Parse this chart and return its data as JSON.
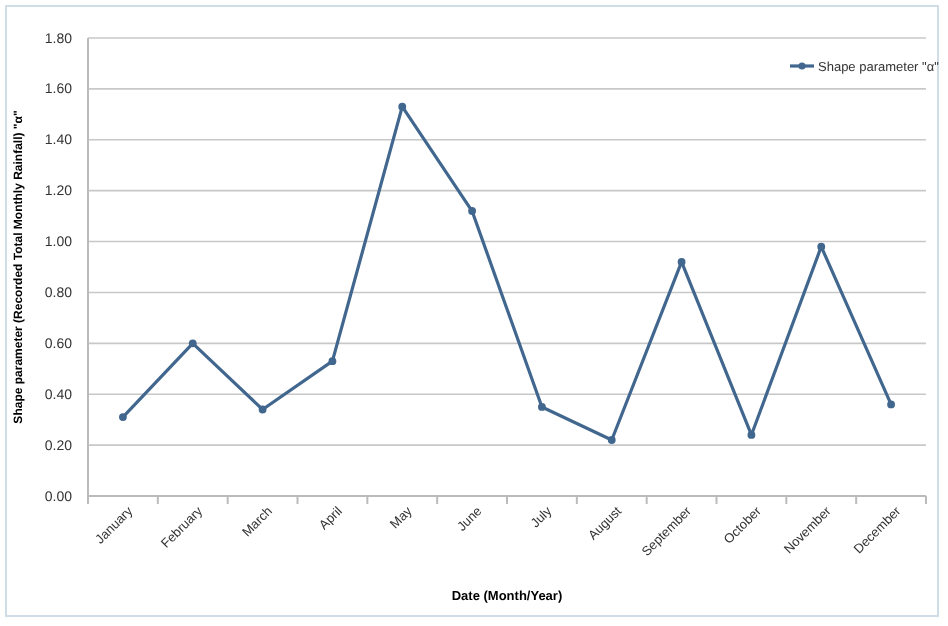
{
  "chart_data": {
    "type": "line",
    "xlabel": "Date (Month/Year)",
    "ylabel": "Shape parameter (Recorded Total Monthly Rainfall) \"α\"",
    "categories": [
      "January",
      "February",
      "March",
      "April",
      "May",
      "June",
      "July",
      "August",
      "September",
      "October",
      "November",
      "December"
    ],
    "series": [
      {
        "name": "Shape parameter \"α\"",
        "color": "#41678f",
        "values": [
          0.31,
          0.6,
          0.34,
          0.53,
          1.53,
          1.12,
          0.35,
          0.22,
          0.92,
          0.24,
          0.98,
          0.36
        ]
      }
    ],
    "ylim": [
      0,
      1.8
    ],
    "yticks": [
      {
        "value": 0,
        "label": "0.00"
      },
      {
        "value": 0.2,
        "label": "0.20"
      },
      {
        "value": 0.4,
        "label": "0.40"
      },
      {
        "value": 0.6,
        "label": "0.60"
      },
      {
        "value": 0.8,
        "label": "0.80"
      },
      {
        "value": 1,
        "label": "1.00"
      },
      {
        "value": 1.2,
        "label": "1.20"
      },
      {
        "value": 1.4,
        "label": "1.40"
      },
      {
        "value": 1.6,
        "label": "1.60"
      },
      {
        "value": 1.8,
        "label": "1.80"
      }
    ],
    "grid": "y",
    "legend": "top right",
    "marker": "circle",
    "line_style": "solid"
  }
}
